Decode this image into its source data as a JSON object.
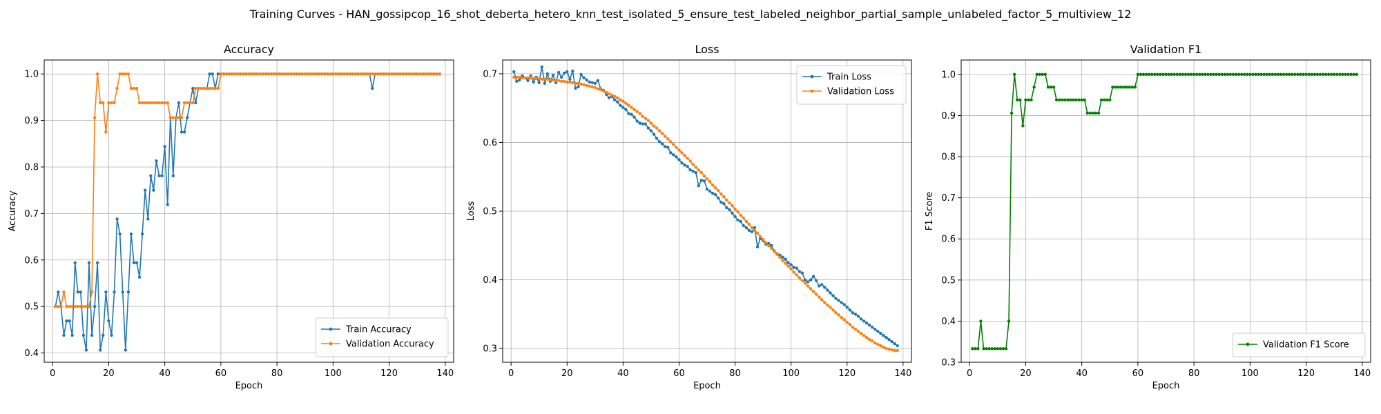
{
  "figure": {
    "suptitle": "Training Curves - HAN_gossipcop_16_shot_deberta_hetero_knn_test_isolated_5_ensure_test_labeled_neighbor_partial_sample_unlabeled_factor_5_multiview_12"
  },
  "colors": {
    "blue": "#1f77b4",
    "orange": "#ff7f0e",
    "green": "#008000",
    "grid": "#b0b0b0"
  },
  "chart_data": [
    {
      "type": "line",
      "title": "Accuracy",
      "xlabel": "Epoch",
      "ylabel": "Accuracy",
      "xlim": [
        -3,
        143
      ],
      "ylim": [
        0.38,
        1.03
      ],
      "xticks": [
        0,
        20,
        40,
        60,
        80,
        100,
        120,
        140
      ],
      "yticks": [
        0.4,
        0.5,
        0.6,
        0.7,
        0.8,
        0.9,
        1.0
      ],
      "grid": true,
      "legend_loc": "lower-right",
      "series": [
        {
          "name": "Train Accuracy",
          "color": "#1f77b4",
          "values": [
            0.5,
            0.531,
            0.5,
            0.438,
            0.469,
            0.469,
            0.438,
            0.594,
            0.531,
            0.531,
            0.438,
            0.406,
            0.594,
            0.438,
            0.5,
            0.594,
            0.406,
            0.438,
            0.531,
            0.469,
            0.438,
            0.531,
            0.688,
            0.656,
            0.531,
            0.406,
            0.531,
            0.656,
            0.594,
            0.594,
            0.563,
            0.656,
            0.75,
            0.688,
            0.781,
            0.75,
            0.813,
            0.781,
            0.781,
            0.844,
            0.719,
            0.906,
            0.781,
            0.906,
            0.938,
            0.875,
            0.875,
            0.906,
            0.938,
            0.969,
            0.938,
            0.969,
            0.969,
            0.969,
            0.969,
            1.0,
            1.0,
            0.969,
            1.0,
            1.0,
            1.0,
            1.0,
            1.0,
            1.0,
            1.0,
            1.0,
            1.0,
            1.0,
            1.0,
            1.0,
            1.0,
            1.0,
            1.0,
            1.0,
            1.0,
            1.0,
            1.0,
            1.0,
            1.0,
            1.0,
            1.0,
            1.0,
            1.0,
            1.0,
            1.0,
            1.0,
            1.0,
            1.0,
            1.0,
            1.0,
            1.0,
            1.0,
            1.0,
            1.0,
            1.0,
            1.0,
            1.0,
            1.0,
            1.0,
            1.0,
            1.0,
            1.0,
            1.0,
            1.0,
            1.0,
            1.0,
            1.0,
            1.0,
            1.0,
            1.0,
            1.0,
            1.0,
            1.0,
            0.969,
            1.0,
            1.0,
            1.0,
            1.0,
            1.0,
            1.0,
            1.0,
            1.0,
            1.0,
            1.0,
            1.0,
            1.0,
            1.0,
            1.0,
            1.0,
            1.0,
            1.0,
            1.0,
            1.0,
            1.0,
            1.0,
            1.0,
            1.0,
            1.0
          ]
        },
        {
          "name": "Validation Accuracy",
          "color": "#ff7f0e",
          "values": [
            0.5,
            0.5,
            0.5,
            0.531,
            0.5,
            0.5,
            0.5,
            0.5,
            0.5,
            0.5,
            0.5,
            0.5,
            0.5,
            0.531,
            0.906,
            1.0,
            0.938,
            0.938,
            0.875,
            0.938,
            0.938,
            0.938,
            0.969,
            1.0,
            1.0,
            1.0,
            1.0,
            0.969,
            0.969,
            0.969,
            0.938,
            0.938,
            0.938,
            0.938,
            0.938,
            0.938,
            0.938,
            0.938,
            0.938,
            0.938,
            0.938,
            0.906,
            0.906,
            0.906,
            0.906,
            0.906,
            0.938,
            0.938,
            0.938,
            0.938,
            0.969,
            0.969,
            0.969,
            0.969,
            0.969,
            0.969,
            0.969,
            0.969,
            0.969,
            1.0,
            1.0,
            1.0,
            1.0,
            1.0,
            1.0,
            1.0,
            1.0,
            1.0,
            1.0,
            1.0,
            1.0,
            1.0,
            1.0,
            1.0,
            1.0,
            1.0,
            1.0,
            1.0,
            1.0,
            1.0,
            1.0,
            1.0,
            1.0,
            1.0,
            1.0,
            1.0,
            1.0,
            1.0,
            1.0,
            1.0,
            1.0,
            1.0,
            1.0,
            1.0,
            1.0,
            1.0,
            1.0,
            1.0,
            1.0,
            1.0,
            1.0,
            1.0,
            1.0,
            1.0,
            1.0,
            1.0,
            1.0,
            1.0,
            1.0,
            1.0,
            1.0,
            1.0,
            1.0,
            1.0,
            1.0,
            1.0,
            1.0,
            1.0,
            1.0,
            1.0,
            1.0,
            1.0,
            1.0,
            1.0,
            1.0,
            1.0,
            1.0,
            1.0,
            1.0,
            1.0,
            1.0,
            1.0,
            1.0,
            1.0,
            1.0,
            1.0,
            1.0,
            1.0
          ]
        }
      ]
    },
    {
      "type": "line",
      "title": "Loss",
      "xlabel": "Epoch",
      "ylabel": "Loss",
      "xlim": [
        -3,
        143
      ],
      "ylim": [
        0.28,
        0.72
      ],
      "xticks": [
        0,
        20,
        40,
        60,
        80,
        100,
        120,
        140
      ],
      "yticks": [
        0.3,
        0.4,
        0.5,
        0.6,
        0.7
      ],
      "grid": true,
      "legend_loc": "upper-right",
      "series": [
        {
          "name": "Train Loss",
          "color": "#1f77b4",
          "values": [
            0.703,
            0.689,
            0.691,
            0.697,
            0.694,
            0.69,
            0.697,
            0.688,
            0.695,
            0.687,
            0.71,
            0.686,
            0.7,
            0.689,
            0.698,
            0.687,
            0.702,
            0.695,
            0.701,
            0.703,
            0.692,
            0.704,
            0.679,
            0.681,
            0.699,
            0.694,
            0.691,
            0.688,
            0.687,
            0.686,
            0.69,
            0.678,
            0.676,
            0.67,
            0.665,
            0.667,
            0.662,
            0.659,
            0.654,
            0.651,
            0.648,
            0.642,
            0.641,
            0.637,
            0.631,
            0.628,
            0.627,
            0.627,
            0.621,
            0.617,
            0.612,
            0.606,
            0.601,
            0.598,
            0.594,
            0.593,
            0.585,
            0.582,
            0.579,
            0.575,
            0.57,
            0.567,
            0.565,
            0.56,
            0.558,
            0.556,
            0.537,
            0.545,
            0.544,
            0.532,
            0.529,
            0.526,
            0.524,
            0.519,
            0.513,
            0.511,
            0.505,
            0.502,
            0.497,
            0.492,
            0.487,
            0.485,
            0.479,
            0.476,
            0.472,
            0.47,
            0.476,
            0.448,
            0.46,
            0.457,
            0.452,
            0.453,
            0.45,
            0.442,
            0.438,
            0.436,
            0.433,
            0.43,
            0.425,
            0.422,
            0.418,
            0.417,
            0.412,
            0.41,
            0.4,
            0.397,
            0.4,
            0.405,
            0.399,
            0.391,
            0.393,
            0.389,
            0.385,
            0.381,
            0.377,
            0.373,
            0.37,
            0.367,
            0.364,
            0.36,
            0.356,
            0.352,
            0.35,
            0.347,
            0.343,
            0.34,
            0.337,
            0.334,
            0.331,
            0.328,
            0.325,
            0.322,
            0.319,
            0.316,
            0.313,
            0.31,
            0.307,
            0.304
          ]
        },
        {
          "name": "Validation Loss",
          "color": "#ff7f0e",
          "values": [
            0.695,
            0.695,
            0.695,
            0.694,
            0.694,
            0.694,
            0.694,
            0.693,
            0.693,
            0.693,
            0.692,
            0.692,
            0.692,
            0.691,
            0.691,
            0.69,
            0.69,
            0.689,
            0.689,
            0.688,
            0.688,
            0.687,
            0.686,
            0.686,
            0.685,
            0.684,
            0.683,
            0.682,
            0.681,
            0.68,
            0.678,
            0.677,
            0.675,
            0.673,
            0.671,
            0.669,
            0.667,
            0.665,
            0.662,
            0.66,
            0.657,
            0.654,
            0.651,
            0.648,
            0.645,
            0.642,
            0.638,
            0.635,
            0.632,
            0.628,
            0.624,
            0.621,
            0.617,
            0.613,
            0.609,
            0.605,
            0.601,
            0.597,
            0.593,
            0.589,
            0.585,
            0.581,
            0.577,
            0.573,
            0.568,
            0.564,
            0.56,
            0.556,
            0.551,
            0.547,
            0.543,
            0.538,
            0.534,
            0.53,
            0.525,
            0.521,
            0.516,
            0.512,
            0.508,
            0.503,
            0.499,
            0.494,
            0.49,
            0.485,
            0.481,
            0.476,
            0.472,
            0.468,
            0.463,
            0.459,
            0.454,
            0.45,
            0.446,
            0.441,
            0.437,
            0.433,
            0.428,
            0.424,
            0.42,
            0.416,
            0.411,
            0.407,
            0.403,
            0.399,
            0.395,
            0.391,
            0.387,
            0.383,
            0.379,
            0.375,
            0.371,
            0.367,
            0.363,
            0.36,
            0.356,
            0.352,
            0.349,
            0.345,
            0.342,
            0.338,
            0.335,
            0.331,
            0.328,
            0.325,
            0.322,
            0.319,
            0.316,
            0.313,
            0.311,
            0.308,
            0.306,
            0.304,
            0.302,
            0.3,
            0.299,
            0.298,
            0.297,
            0.297
          ]
        }
      ]
    },
    {
      "type": "line",
      "title": "Validation F1",
      "xlabel": "Epoch",
      "ylabel": "F1 Score",
      "xlim": [
        -3,
        143
      ],
      "ylim": [
        0.3,
        1.035
      ],
      "xticks": [
        0,
        20,
        40,
        60,
        80,
        100,
        120,
        140
      ],
      "yticks": [
        0.3,
        0.4,
        0.5,
        0.6,
        0.7,
        0.8,
        0.9,
        1.0
      ],
      "grid": true,
      "legend_loc": "lower-right",
      "series": [
        {
          "name": "Validation F1 Score",
          "color": "#008000",
          "values": [
            0.333,
            0.333,
            0.333,
            0.4,
            0.333,
            0.333,
            0.333,
            0.333,
            0.333,
            0.333,
            0.333,
            0.333,
            0.333,
            0.4,
            0.906,
            1.0,
            0.938,
            0.938,
            0.875,
            0.938,
            0.938,
            0.938,
            0.969,
            1.0,
            1.0,
            1.0,
            1.0,
            0.969,
            0.969,
            0.969,
            0.938,
            0.938,
            0.938,
            0.938,
            0.938,
            0.938,
            0.938,
            0.938,
            0.938,
            0.938,
            0.938,
            0.906,
            0.906,
            0.906,
            0.906,
            0.906,
            0.938,
            0.938,
            0.938,
            0.938,
            0.969,
            0.969,
            0.969,
            0.969,
            0.969,
            0.969,
            0.969,
            0.969,
            0.969,
            1.0,
            1.0,
            1.0,
            1.0,
            1.0,
            1.0,
            1.0,
            1.0,
            1.0,
            1.0,
            1.0,
            1.0,
            1.0,
            1.0,
            1.0,
            1.0,
            1.0,
            1.0,
            1.0,
            1.0,
            1.0,
            1.0,
            1.0,
            1.0,
            1.0,
            1.0,
            1.0,
            1.0,
            1.0,
            1.0,
            1.0,
            1.0,
            1.0,
            1.0,
            1.0,
            1.0,
            1.0,
            1.0,
            1.0,
            1.0,
            1.0,
            1.0,
            1.0,
            1.0,
            1.0,
            1.0,
            1.0,
            1.0,
            1.0,
            1.0,
            1.0,
            1.0,
            1.0,
            1.0,
            1.0,
            1.0,
            1.0,
            1.0,
            1.0,
            1.0,
            1.0,
            1.0,
            1.0,
            1.0,
            1.0,
            1.0,
            1.0,
            1.0,
            1.0,
            1.0,
            1.0,
            1.0,
            1.0,
            1.0,
            1.0,
            1.0,
            1.0,
            1.0,
            1.0
          ]
        }
      ]
    }
  ]
}
